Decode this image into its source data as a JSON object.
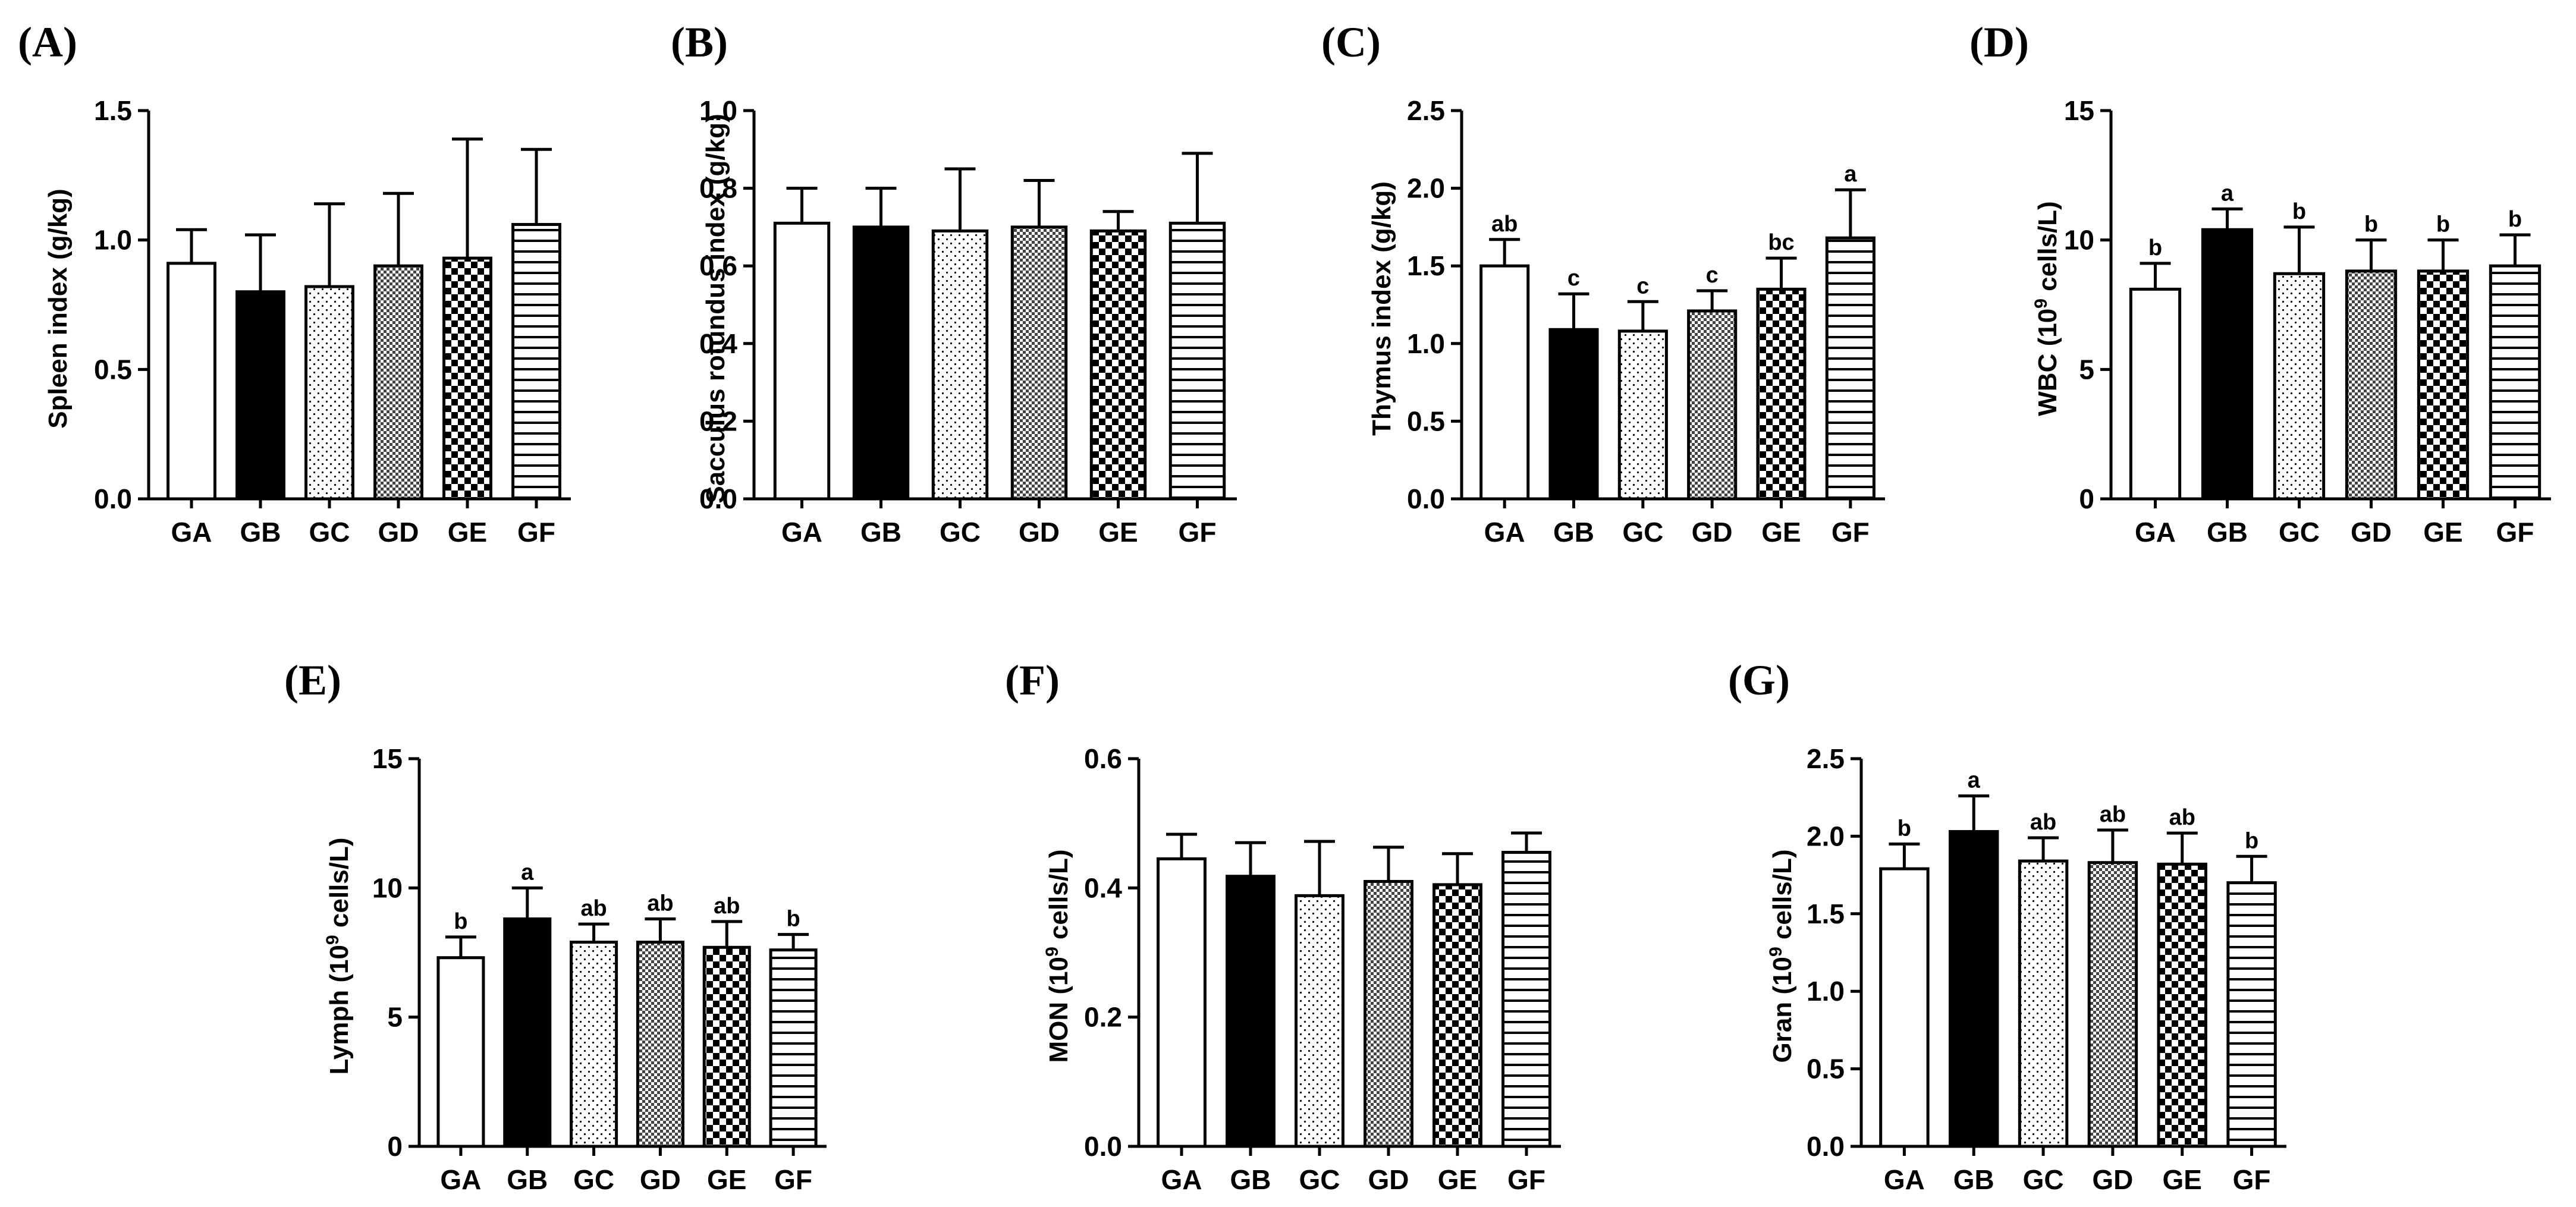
{
  "figure": {
    "categories": [
      "GA",
      "GB",
      "GC",
      "GD",
      "GE",
      "GF"
    ],
    "bar_fills": [
      "white",
      "black",
      "dots",
      "fine-check",
      "checker",
      "hlines"
    ],
    "colors": {
      "stroke": "#000000",
      "background": "#ffffff"
    }
  },
  "chart_data": [
    {
      "type": "bar",
      "panel": "(A)",
      "ylabel": "Spleen index (g/kg)",
      "ylim": [
        0,
        1.5
      ],
      "yticks": [
        "0.0",
        "0.5",
        "1.0",
        "1.5"
      ],
      "ytick_values": [
        0,
        0.5,
        1.0,
        1.5
      ],
      "categories": [
        "GA",
        "GB",
        "GC",
        "GD",
        "GE",
        "GF"
      ],
      "values": [
        0.91,
        0.8,
        0.82,
        0.9,
        0.93,
        1.06
      ],
      "errors": [
        0.13,
        0.22,
        0.32,
        0.28,
        0.46,
        0.29
      ],
      "sig": [
        "",
        "",
        "",
        "",
        "",
        ""
      ]
    },
    {
      "type": "bar",
      "panel": "(B)",
      "ylabel": "Sacculus rotundus index (g/kg)",
      "ylim": [
        0,
        1.0
      ],
      "yticks": [
        "0.0",
        "0.2",
        "0.4",
        "0.6",
        "0.8",
        "1.0"
      ],
      "ytick_values": [
        0,
        0.2,
        0.4,
        0.6,
        0.8,
        1.0
      ],
      "categories": [
        "GA",
        "GB",
        "GC",
        "GD",
        "GE",
        "GF"
      ],
      "values": [
        0.71,
        0.7,
        0.69,
        0.7,
        0.69,
        0.71
      ],
      "errors": [
        0.09,
        0.1,
        0.16,
        0.12,
        0.05,
        0.18
      ],
      "sig": [
        "",
        "",
        "",
        "",
        "",
        ""
      ]
    },
    {
      "type": "bar",
      "panel": "(C)",
      "ylabel": "Thymus index (g/kg)",
      "ylim": [
        0,
        2.5
      ],
      "yticks": [
        "0.0",
        "0.5",
        "1.0",
        "1.5",
        "2.0",
        "2.5"
      ],
      "ytick_values": [
        0,
        0.5,
        1.0,
        1.5,
        2.0,
        2.5
      ],
      "categories": [
        "GA",
        "GB",
        "GC",
        "GD",
        "GE",
        "GF"
      ],
      "values": [
        1.5,
        1.09,
        1.08,
        1.21,
        1.35,
        1.68
      ],
      "errors": [
        0.17,
        0.23,
        0.19,
        0.13,
        0.2,
        0.31
      ],
      "sig": [
        "ab",
        "c",
        "c",
        "c",
        "bc",
        "a"
      ]
    },
    {
      "type": "bar",
      "panel": "(D)",
      "ylabel_main": "WBC (10",
      "ylabel_sup": "9",
      "ylabel_tail": " cells/L)",
      "ylim": [
        0,
        15
      ],
      "yticks": [
        "0",
        "5",
        "10",
        "15"
      ],
      "ytick_values": [
        0,
        5,
        10,
        15
      ],
      "categories": [
        "GA",
        "GB",
        "GC",
        "GD",
        "GE",
        "GF"
      ],
      "values": [
        8.1,
        10.4,
        8.7,
        8.8,
        8.8,
        9.0
      ],
      "errors": [
        1.0,
        0.8,
        1.8,
        1.2,
        1.2,
        1.2
      ],
      "sig": [
        "b",
        "a",
        "b",
        "b",
        "b",
        "b"
      ]
    },
    {
      "type": "bar",
      "panel": "(E)",
      "ylabel_main": "Lymph (10",
      "ylabel_sup": "9",
      "ylabel_tail": " cells/L)",
      "ylim": [
        0,
        15
      ],
      "yticks": [
        "0",
        "5",
        "10",
        "15"
      ],
      "ytick_values": [
        0,
        5,
        10,
        15
      ],
      "categories": [
        "GA",
        "GB",
        "GC",
        "GD",
        "GE",
        "GF"
      ],
      "values": [
        7.3,
        8.8,
        7.9,
        7.9,
        7.7,
        7.6
      ],
      "errors": [
        0.8,
        1.2,
        0.7,
        0.9,
        1.0,
        0.6
      ],
      "sig": [
        "b",
        "a",
        "ab",
        "ab",
        "ab",
        "b"
      ]
    },
    {
      "type": "bar",
      "panel": "(F)",
      "ylabel_main": "MON (10",
      "ylabel_sup": "9",
      "ylabel_tail": " cells/L)",
      "ylim": [
        0,
        0.6
      ],
      "yticks": [
        "0.0",
        "0.2",
        "0.4",
        "0.6"
      ],
      "ytick_values": [
        0,
        0.2,
        0.4,
        0.6
      ],
      "categories": [
        "GA",
        "GB",
        "GC",
        "GD",
        "GE",
        "GF"
      ],
      "values": [
        0.445,
        0.418,
        0.388,
        0.41,
        0.405,
        0.455
      ],
      "errors": [
        0.038,
        0.052,
        0.084,
        0.053,
        0.048,
        0.03
      ],
      "sig": [
        "",
        "",
        "",
        "",
        "",
        ""
      ]
    },
    {
      "type": "bar",
      "panel": "(G)",
      "ylabel_main": "Gran (10",
      "ylabel_sup": "9",
      "ylabel_tail": " cells/L)",
      "ylim": [
        0,
        2.5
      ],
      "yticks": [
        "0.0",
        "0.5",
        "1.0",
        "1.5",
        "2.0",
        "2.5"
      ],
      "ytick_values": [
        0,
        0.5,
        1.0,
        1.5,
        2.0,
        2.5
      ],
      "categories": [
        "GA",
        "GB",
        "GC",
        "GD",
        "GE",
        "GF"
      ],
      "values": [
        1.79,
        2.03,
        1.84,
        1.83,
        1.82,
        1.7
      ],
      "errors": [
        0.16,
        0.23,
        0.15,
        0.21,
        0.2,
        0.17
      ],
      "sig": [
        "b",
        "a",
        "ab",
        "ab",
        "ab",
        "b"
      ]
    }
  ]
}
